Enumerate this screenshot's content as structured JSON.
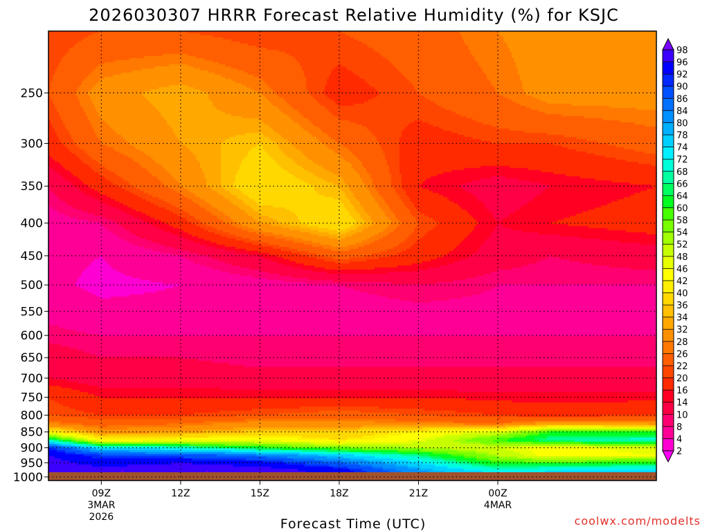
{
  "chart_data": {
    "type": "heatmap",
    "title": "2026030307 HRRR Forecast Relative Humidity (%) for KSJC",
    "xlabel": "Forecast Time (UTC)",
    "ylabel": "",
    "x_range_hours": [
      7,
      30
    ],
    "y_range_hpa": [
      1013,
      200
    ],
    "x_ticks": [
      {
        "hour": 9,
        "label": "09Z",
        "date": "3MAR",
        "year": "2026"
      },
      {
        "hour": 12,
        "label": "12Z"
      },
      {
        "hour": 15,
        "label": "15Z"
      },
      {
        "hour": 18,
        "label": "18Z"
      },
      {
        "hour": 21,
        "label": "21Z"
      },
      {
        "hour": 24,
        "label": "00Z",
        "date": "4MAR"
      }
    ],
    "y_ticks": [
      250,
      300,
      350,
      400,
      450,
      500,
      550,
      600,
      650,
      700,
      750,
      800,
      850,
      900,
      950,
      1000
    ],
    "colorbar_levels": [
      2,
      4,
      8,
      10,
      14,
      16,
      20,
      22,
      26,
      28,
      32,
      34,
      36,
      40,
      42,
      46,
      48,
      52,
      54,
      58,
      60,
      64,
      66,
      68,
      72,
      74,
      78,
      80,
      84,
      86,
      90,
      92,
      96,
      98
    ],
    "colorbar_colors": [
      "#ff00ff",
      "#ff00d2",
      "#ff0096",
      "#ff0070",
      "#ff0046",
      "#ff0022",
      "#ff2a00",
      "#ff4600",
      "#ff5f00",
      "#ff7800",
      "#ff9000",
      "#ffa800",
      "#ffc000",
      "#ffd800",
      "#ffee00",
      "#ffff00",
      "#e8ff00",
      "#c8ff00",
      "#a0ff00",
      "#78ff00",
      "#46ff00",
      "#00ff20",
      "#00ff60",
      "#00ffa0",
      "#00ffd8",
      "#00f0ff",
      "#00d0ff",
      "#00b0ff",
      "#0090ff",
      "#0070ff",
      "#0050ff",
      "#0028ff",
      "#0000ff",
      "#3c00ff",
      "#7800ff"
    ],
    "surface_color": "#a0522d",
    "humidity_field": {
      "description": "RH (%) on a time-pressure grid",
      "times": [
        7,
        9,
        12,
        15,
        18,
        21,
        24,
        26,
        30
      ],
      "pressures": [
        200,
        250,
        300,
        350,
        400,
        450,
        500,
        550,
        600,
        650,
        700,
        750,
        800,
        825,
        850,
        875,
        900,
        925,
        950,
        975,
        1000,
        1013
      ],
      "values": [
        [
          20,
          22,
          22,
          20,
          22,
          24,
          28,
          30,
          30
        ],
        [
          22,
          30,
          34,
          28,
          18,
          22,
          26,
          30,
          30
        ],
        [
          18,
          26,
          32,
          36,
          26,
          18,
          20,
          20,
          24
        ],
        [
          10,
          18,
          28,
          40,
          34,
          16,
          12,
          14,
          16
        ],
        [
          6,
          8,
          18,
          32,
          40,
          22,
          14,
          16,
          18
        ],
        [
          5,
          4,
          8,
          14,
          24,
          18,
          12,
          10,
          12
        ],
        [
          5,
          3,
          4,
          6,
          8,
          10,
          8,
          8,
          8
        ],
        [
          7,
          5,
          5,
          6,
          6,
          7,
          7,
          7,
          7
        ],
        [
          9,
          8,
          8,
          8,
          8,
          8,
          8,
          8,
          8
        ],
        [
          12,
          10,
          10,
          9,
          9,
          9,
          9,
          9,
          9
        ],
        [
          14,
          12,
          12,
          11,
          11,
          11,
          11,
          11,
          11
        ],
        [
          20,
          16,
          16,
          16,
          16,
          16,
          15,
          15,
          15
        ],
        [
          22,
          20,
          20,
          22,
          24,
          22,
          20,
          18,
          20
        ],
        [
          28,
          24,
          26,
          30,
          30,
          28,
          26,
          32,
          30
        ],
        [
          42,
          30,
          32,
          36,
          36,
          42,
          48,
          60,
          60
        ],
        [
          68,
          42,
          44,
          46,
          40,
          46,
          60,
          68,
          70
        ],
        [
          92,
          74,
          70,
          62,
          56,
          52,
          48,
          44,
          48
        ],
        [
          96,
          90,
          88,
          84,
          76,
          66,
          52,
          44,
          46
        ],
        [
          98,
          94,
          96,
          94,
          86,
          74,
          60,
          60,
          62
        ],
        [
          98,
          98,
          98,
          98,
          94,
          80,
          70,
          72,
          74
        ],
        [
          98,
          98,
          98,
          98,
          96,
          84,
          78,
          80,
          82
        ],
        [
          98,
          98,
          98,
          98,
          96,
          86,
          80,
          82,
          84
        ]
      ]
    }
  },
  "credit": "coolwx.com/modelts"
}
